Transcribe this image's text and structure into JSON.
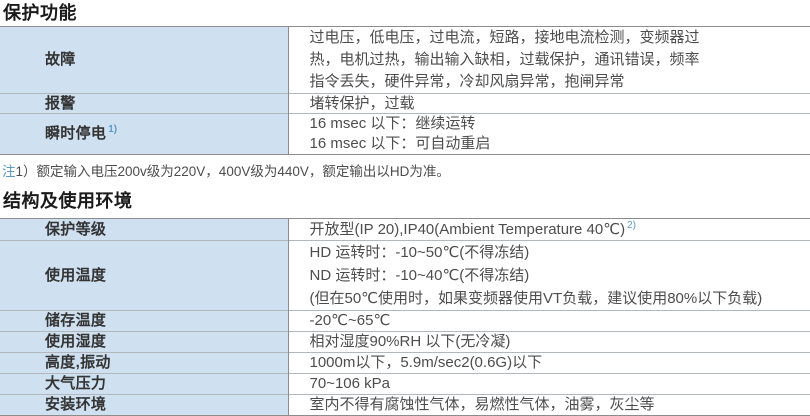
{
  "colors": {
    "label_cell_bg": "#cfe0f0",
    "outer_border": "#8c8c8c",
    "row_border": "#b2b7bc",
    "accent_blue": "#5d9bc7",
    "title_text": "#1a1a1a",
    "body_text": "#4d4d4d"
  },
  "section_protection": {
    "title": "保护功能",
    "rows": [
      {
        "label": "故障",
        "value": "过电压，低电压，过电流，短路，接地电流检测，变频器过\n热，电机过热，输出输入缺相，过载保护，通讯错误，频率\n指令丢失，硬件异常，冷却风扇异常，抱闸异常"
      },
      {
        "label": "报警",
        "value": "堵转保护，过载"
      },
      {
        "label": "瞬时停电",
        "label_sup": "1)",
        "value": "16 msec 以下：继续运转\n16 msec 以下：可自动重启"
      }
    ],
    "note": {
      "prefix": "注",
      "text": "1）额定输入电压200v级为220V，400V级为440V，额定输出以HD为准。"
    }
  },
  "section_environment": {
    "title": "结构及使用环境",
    "rows": [
      {
        "label": "保护等级",
        "value": "开放型(IP 20),IP40(Ambient Temperature 40℃)",
        "value_sup": "2)"
      },
      {
        "label": "使用温度",
        "value": "HD 运转时：-10~50℃(不得冻结)\nND 运转时：-10~40℃(不得冻结)\n(但在50℃使用时，如果变频器使用VT负载，建议使用80%以下负载)"
      },
      {
        "label": "储存温度",
        "value": "-20℃~65℃"
      },
      {
        "label": "使用湿度",
        "value": "相对湿度90%RH 以下(无冷凝)"
      },
      {
        "label": "高度,振动",
        "value": "1000m以下，5.9m/sec2(0.6G)以下"
      },
      {
        "label": "大气压力",
        "value": "70~106 kPa"
      },
      {
        "label": "安装环境",
        "value": "室内不得有腐蚀性气体，易燃性气体，油雾，灰尘等"
      }
    ]
  }
}
